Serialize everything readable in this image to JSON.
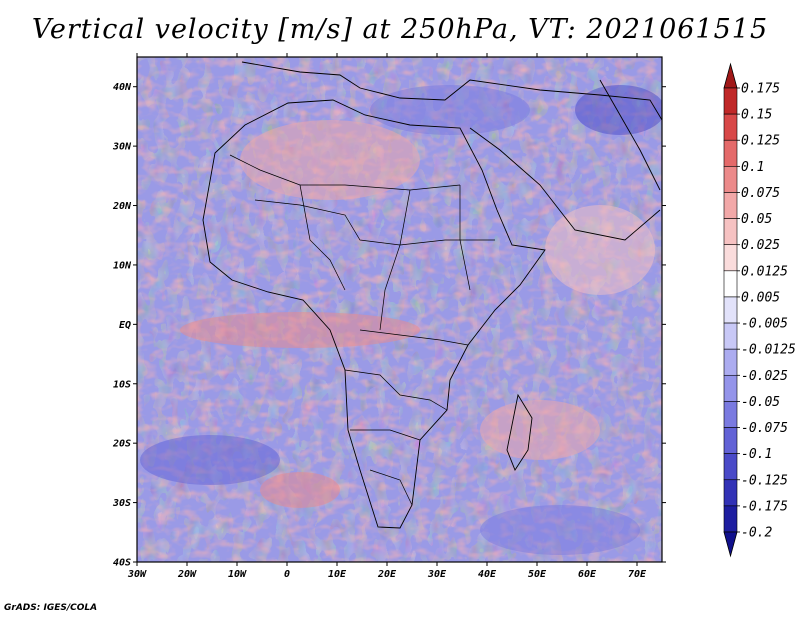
{
  "title": "Vertical velocity [m/s] at 250hPa, VT: 2021061515",
  "credit": "GrADS: IGES/COLA",
  "map": {
    "lon_range": [
      -30,
      75
    ],
    "lat_range": [
      -40,
      45
    ],
    "lat_ticks": [
      {
        "value": 40,
        "label": "40N"
      },
      {
        "value": 30,
        "label": "30N"
      },
      {
        "value": 20,
        "label": "20N"
      },
      {
        "value": 10,
        "label": "10N"
      },
      {
        "value": 0,
        "label": "EQ"
      },
      {
        "value": -10,
        "label": "10S"
      },
      {
        "value": -20,
        "label": "20S"
      },
      {
        "value": -30,
        "label": "30S"
      },
      {
        "value": -40,
        "label": "40S"
      }
    ],
    "lon_ticks": [
      {
        "value": -30,
        "label": "30W"
      },
      {
        "value": -20,
        "label": "20W"
      },
      {
        "value": -10,
        "label": "10W"
      },
      {
        "value": 0,
        "label": "0"
      },
      {
        "value": 10,
        "label": "10E"
      },
      {
        "value": 20,
        "label": "20E"
      },
      {
        "value": 30,
        "label": "30E"
      },
      {
        "value": 40,
        "label": "40E"
      },
      {
        "value": 50,
        "label": "50E"
      },
      {
        "value": 60,
        "label": "60E"
      },
      {
        "value": 70,
        "label": "70E"
      }
    ]
  },
  "colorbar": {
    "labels": [
      "0.175",
      "0.15",
      "0.125",
      "0.1",
      "0.075",
      "0.05",
      "0.025",
      "0.0125",
      "0.005",
      "-0.005",
      "-0.0125",
      "-0.025",
      "-0.05",
      "-0.075",
      "-0.1",
      "-0.125",
      "-0.175",
      "-0.2"
    ],
    "colors": [
      "#a01818",
      "#c02828",
      "#d84848",
      "#e46a6a",
      "#ec8a8a",
      "#f2a8a8",
      "#f6c2c2",
      "#fadcdc",
      "#ffffff",
      "#e2e2fa",
      "#c8c8f6",
      "#acacf0",
      "#9494ea",
      "#7a7ae0",
      "#6262d6",
      "#4a4ac8",
      "#3232b6",
      "#1e1ea0",
      "#10108c"
    ]
  }
}
